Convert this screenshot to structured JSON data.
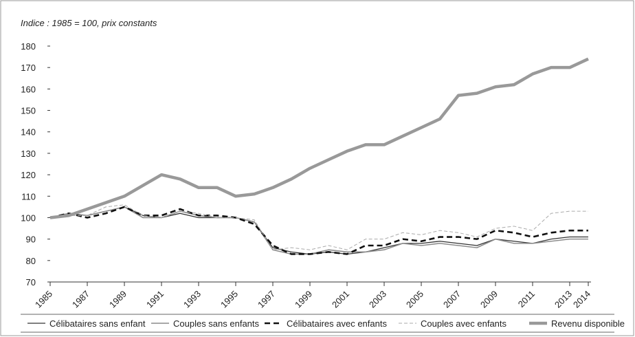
{
  "chart_data": {
    "type": "line",
    "subtitle": "Indice : 1985 = 100, prix constants",
    "x": [
      1985,
      1986,
      1987,
      1988,
      1989,
      1990,
      1991,
      1992,
      1993,
      1994,
      1995,
      1996,
      1997,
      1998,
      1999,
      2000,
      2001,
      2002,
      2003,
      2004,
      2005,
      2006,
      2007,
      2008,
      2009,
      2010,
      2011,
      2012,
      2013,
      2014
    ],
    "xlim": [
      1985,
      2014
    ],
    "xticks": [
      1985,
      1987,
      1989,
      1991,
      1993,
      1995,
      1997,
      1999,
      2001,
      2003,
      2005,
      2007,
      2009,
      2011,
      2013,
      2014
    ],
    "ylim": [
      70,
      180
    ],
    "yticks": [
      70,
      80,
      90,
      100,
      110,
      120,
      130,
      140,
      150,
      160,
      170,
      180
    ],
    "series": [
      {
        "name": "Célibataires sans enfant",
        "color": "#333333",
        "values": [
          100,
          102,
          101,
          103,
          105,
          101,
          100,
          102,
          100,
          100,
          100,
          98,
          86,
          84,
          83,
          84,
          83,
          84,
          86,
          88,
          88,
          89,
          88,
          87,
          90,
          89,
          88,
          90,
          91,
          91
        ]
      },
      {
        "name": "Couples sans enfants",
        "color": "#8c8c8c",
        "values": [
          100,
          102,
          101,
          103,
          105,
          100,
          100,
          103,
          101,
          100,
          100,
          98,
          85,
          83,
          83,
          85,
          84,
          84,
          85,
          88,
          87,
          88,
          87,
          86,
          90,
          88,
          88,
          89,
          90,
          90
        ]
      },
      {
        "name": "Célibataires avec enfants",
        "color": "#111111",
        "values": [
          100,
          102,
          100,
          102,
          105,
          101,
          101,
          104,
          101,
          101,
          100,
          97,
          87,
          83,
          83,
          84,
          83,
          87,
          87,
          90,
          89,
          91,
          91,
          90,
          94,
          93,
          91,
          93,
          94,
          94
        ]
      },
      {
        "name": "Couples avec enfants",
        "color": "#aaaaaa",
        "values": [
          100,
          101,
          101,
          105,
          106,
          101,
          100,
          103,
          102,
          100,
          100,
          99,
          85,
          86,
          85,
          87,
          85,
          90,
          90,
          93,
          92,
          94,
          93,
          91,
          95,
          96,
          94,
          102,
          103,
          103
        ]
      },
      {
        "name": "Revenu disponible",
        "color": "#999999",
        "values": [
          100,
          101,
          104,
          107,
          110,
          115,
          120,
          118,
          114,
          114,
          110,
          111,
          114,
          118,
          123,
          127,
          131,
          134,
          134,
          138,
          142,
          146,
          157,
          158,
          161,
          162,
          167,
          170,
          170,
          174
        ]
      }
    ]
  }
}
